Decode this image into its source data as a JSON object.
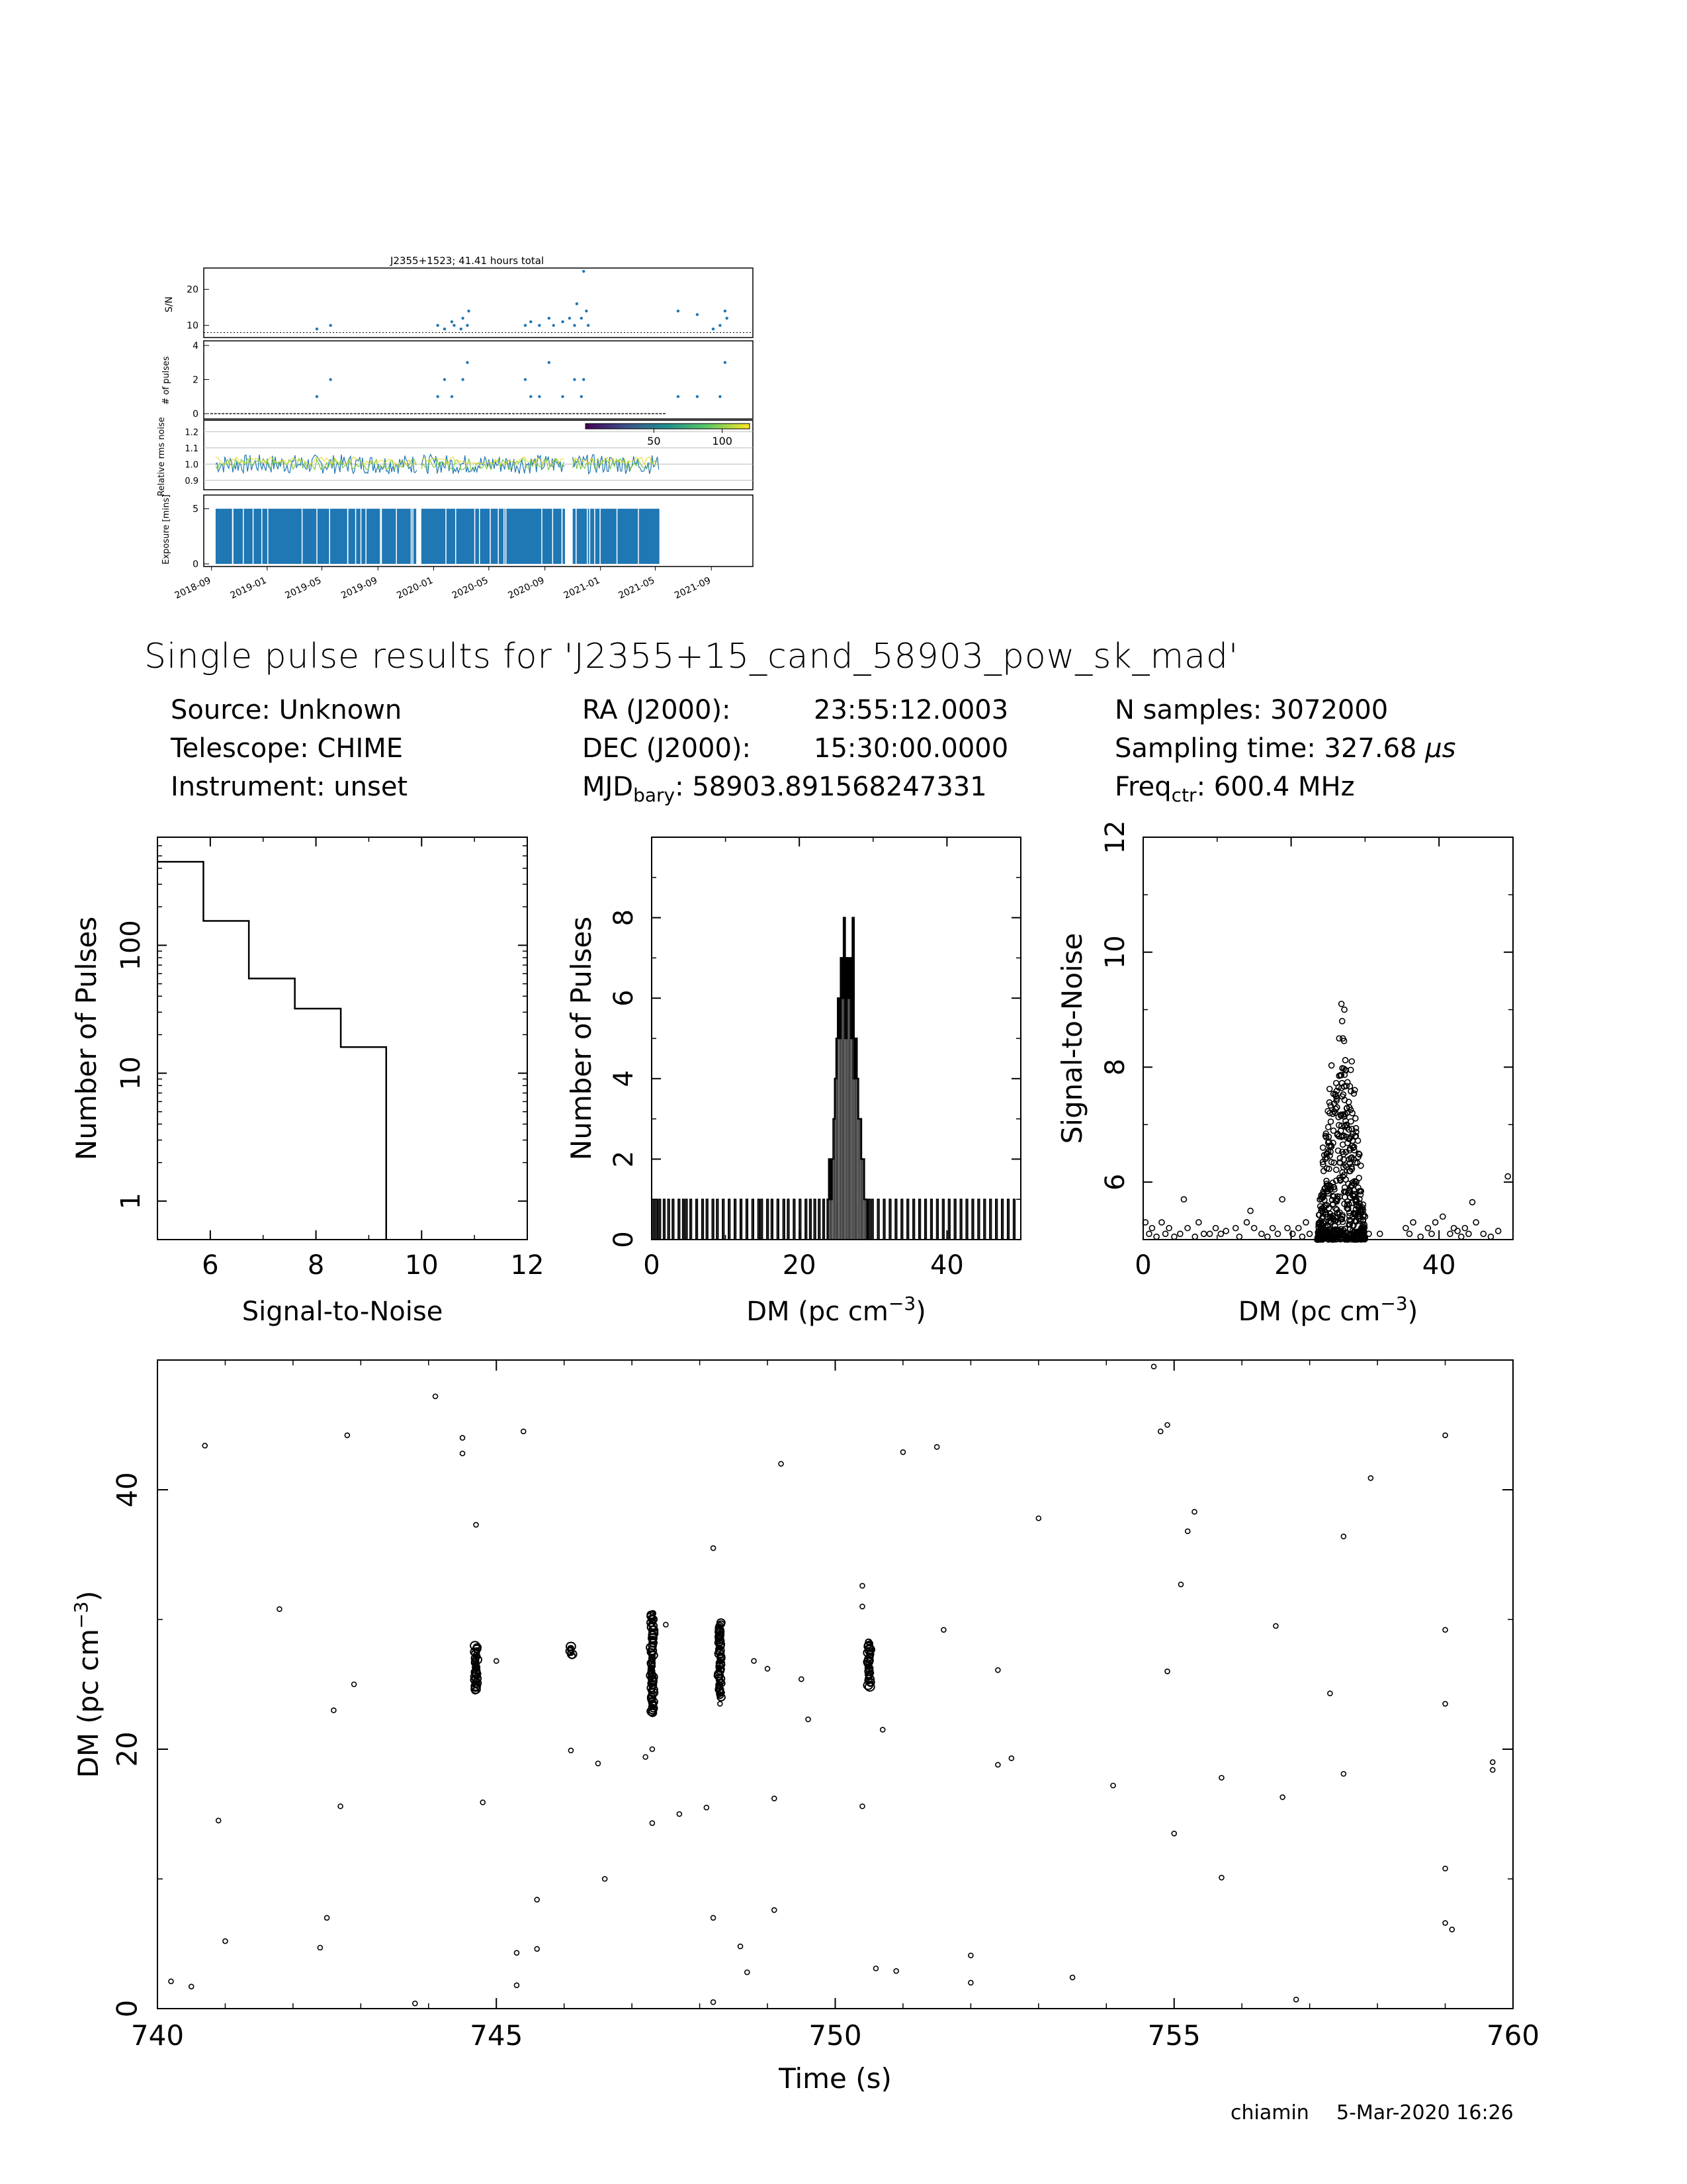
{
  "header": {
    "title": "Single pulse results for 'J2355+15_cand_58903_pow_sk_mad'",
    "source": "Source: Unknown",
    "telescope": "Telescope: CHIME",
    "instrument": "Instrument: unset",
    "ra_label": "RA (J2000):",
    "ra_value": "23:55:12.0003",
    "dec_label": "DEC (J2000):",
    "dec_value": "15:30:00.0000",
    "mjd_prefix": "MJD",
    "mjd_sub": "bary",
    "mjd_value": ": 58903.891568247331",
    "nsamples": "N samples: 3072000",
    "sampling_prefix": "Sampling time: 327.68 ",
    "sampling_unit": "μs",
    "freq_prefix": "Freq",
    "freq_sub": "ctr",
    "freq_value": ": 600.4 MHz"
  },
  "footer": {
    "user": "chiamin",
    "timestamp": "5-Mar-2020 16:26"
  },
  "colors": {
    "points": "#1f77b4",
    "bars": "#1f77b4",
    "ink": "#000000"
  },
  "chart_data": [
    {
      "id": "summary_sn",
      "type": "scatter",
      "title": "J2355+1523; 41.41 hours total",
      "ylabel": "S/N",
      "ylim": [
        7,
        25
      ],
      "yticks": [
        "10",
        "20"
      ],
      "threshold": 8,
      "x": [
        "2019-04-20",
        "2019-05-20",
        "2020-01-10",
        "2020-01-25",
        "2020-02-10",
        "2020-02-15",
        "2020-03-01",
        "2020-03-05",
        "2020-03-15",
        "2020-03-18",
        "2020-07-20",
        "2020-08-01",
        "2020-08-20",
        "2020-09-10",
        "2020-09-20",
        "2020-10-10",
        "2020-10-25",
        "2020-11-05",
        "2020-11-10",
        "2020-11-20",
        "2020-11-25",
        "2020-12-01",
        "2020-12-05",
        "2021-06-20",
        "2021-08-01",
        "2021-09-05",
        "2021-09-20",
        "2021-10-01",
        "2021-10-05"
      ],
      "y": [
        9,
        10,
        10,
        9,
        11,
        10,
        9,
        12,
        10,
        14,
        10,
        11,
        10,
        12,
        10,
        11,
        12,
        10,
        16,
        12,
        25,
        14,
        10,
        14,
        13,
        9,
        10,
        14,
        12
      ]
    },
    {
      "id": "summary_pulses",
      "type": "scatter",
      "ylabel": "# of pulses",
      "ylim": [
        0,
        4
      ],
      "yticks": [
        "0",
        "2",
        "4"
      ],
      "x": [
        "2019-04-20",
        "2019-05-20",
        "2020-01-10",
        "2020-01-25",
        "2020-02-10",
        "2020-03-05",
        "2020-03-15",
        "2020-07-20",
        "2020-08-01",
        "2020-08-20",
        "2020-09-10",
        "2020-10-10",
        "2020-11-05",
        "2020-11-20",
        "2020-11-25",
        "2021-06-20",
        "2021-08-01",
        "2021-09-20",
        "2021-10-01"
      ],
      "y": [
        1,
        2,
        1,
        2,
        1,
        2,
        3,
        2,
        1,
        1,
        3,
        1,
        2,
        1,
        2,
        1,
        1,
        1,
        3
      ]
    },
    {
      "id": "summary_rms",
      "type": "line",
      "ylabel": "Relative rms noise",
      "ylim": [
        0.85,
        1.25
      ],
      "yticks": [
        "0.9",
        "1.0",
        "1.1",
        "1.2"
      ],
      "colorbar_ticks": [
        "50",
        "100"
      ],
      "segments": [
        [
          "2018-09-10",
          "2019-11-25"
        ],
        [
          "2019-12-05",
          "2020-10-15"
        ],
        [
          "2020-11-01",
          "2021-05-10"
        ]
      ]
    },
    {
      "id": "summary_exposure",
      "type": "bar",
      "ylabel": "Exposure [mins]",
      "ylim": [
        0,
        6
      ],
      "yticks": [
        "0",
        "5"
      ],
      "typical_value": 5,
      "segments": [
        [
          "2018-09-10",
          "2019-11-25"
        ],
        [
          "2019-12-05",
          "2020-10-15"
        ],
        [
          "2020-11-01",
          "2021-05-10"
        ]
      ],
      "xticks": [
        "2018-09",
        "2019-01",
        "2019-05",
        "2019-09",
        "2020-01",
        "2020-05",
        "2020-09",
        "2021-01",
        "2021-05",
        "2021-09"
      ]
    },
    {
      "id": "sn_histogram",
      "type": "bar",
      "xlabel": "Signal-to-Noise",
      "ylabel": "Number of Pulses",
      "xlim": [
        5,
        12
      ],
      "ylim_log": [
        0.5,
        700
      ],
      "xticks": [
        "6",
        "8",
        "10",
        "12"
      ],
      "yticks": [
        "1",
        "10",
        "100"
      ],
      "edges": [
        5,
        5.87,
        6.73,
        7.6,
        8.47,
        9.33
      ],
      "values": [
        450,
        155,
        55,
        32,
        16
      ]
    },
    {
      "id": "dm_histogram",
      "type": "bar",
      "xlabel": "DM (pc cm",
      "xlabel_sup": "−3",
      "xlabel_end": ")",
      "ylabel": "Number of Pulses",
      "xlim": [
        0,
        50
      ],
      "ylim": [
        0,
        10
      ],
      "xticks": [
        "0",
        "20",
        "40"
      ],
      "yticks": [
        "0",
        "2",
        "4",
        "6",
        "8"
      ],
      "bin_width": 0.2,
      "peak_bins": [
        [
          23.8,
          1
        ],
        [
          24.0,
          2
        ],
        [
          24.2,
          1
        ],
        [
          24.4,
          2
        ],
        [
          24.6,
          3
        ],
        [
          24.8,
          4
        ],
        [
          25.0,
          5
        ],
        [
          25.2,
          6
        ],
        [
          25.4,
          5
        ],
        [
          25.6,
          7
        ],
        [
          25.8,
          6
        ],
        [
          26.0,
          8
        ],
        [
          26.2,
          5
        ],
        [
          26.4,
          7
        ],
        [
          26.6,
          6
        ],
        [
          26.8,
          7
        ],
        [
          27.0,
          5
        ],
        [
          27.2,
          8
        ],
        [
          27.4,
          4
        ],
        [
          27.6,
          5
        ],
        [
          27.8,
          4
        ],
        [
          28.0,
          3
        ],
        [
          28.2,
          3
        ],
        [
          28.4,
          2
        ],
        [
          28.6,
          2
        ],
        [
          28.8,
          1
        ],
        [
          29.0,
          1
        ]
      ],
      "single_bins": [
        0.2,
        0.6,
        1.0,
        1.6,
        2.2,
        2.8,
        3.6,
        4.2,
        4.6,
        5.2,
        6.0,
        6.8,
        7.4,
        8.2,
        8.8,
        9.6,
        10.4,
        11.2,
        12.0,
        12.8,
        13.6,
        14.4,
        14.8,
        15.6,
        16.2,
        17.0,
        17.8,
        18.4,
        19.2,
        20.0,
        20.8,
        21.4,
        22.0,
        22.6,
        23.2,
        29.4,
        29.8,
        30.6,
        31.4,
        32.2,
        33.0,
        33.8,
        34.6,
        35.4,
        36.2,
        37.0,
        37.8,
        38.6,
        39.4,
        40.2,
        41.0,
        41.8,
        42.6,
        43.4,
        44.2,
        45.0,
        45.8,
        46.6,
        47.4,
        48.2,
        49.0
      ]
    },
    {
      "id": "sn_vs_dm",
      "type": "scatter",
      "xlabel": "DM (pc cm",
      "xlabel_sup": "−3",
      "xlabel_end": ")",
      "ylabel": "Signal-to-Noise",
      "xlim": [
        0,
        50
      ],
      "ylim": [
        5,
        12
      ],
      "xticks": [
        "0",
        "20",
        "40"
      ],
      "yticks": [
        "6",
        "8",
        "10",
        "12"
      ],
      "points": [
        [
          0.3,
          5.3
        ],
        [
          0.8,
          5.1
        ],
        [
          1.2,
          5.2
        ],
        [
          1.8,
          5.05
        ],
        [
          2.5,
          5.3
        ],
        [
          3.0,
          5.1
        ],
        [
          3.5,
          5.2
        ],
        [
          4.2,
          5.05
        ],
        [
          5.0,
          5.1
        ],
        [
          5.5,
          5.7
        ],
        [
          6.0,
          5.2
        ],
        [
          7.0,
          5.05
        ],
        [
          7.5,
          5.3
        ],
        [
          8.2,
          5.1
        ],
        [
          9.0,
          5.1
        ],
        [
          9.8,
          5.2
        ],
        [
          10.5,
          5.1
        ],
        [
          11.2,
          5.15
        ],
        [
          12.5,
          5.2
        ],
        [
          13.0,
          5.05
        ],
        [
          14.0,
          5.3
        ],
        [
          14.5,
          5.5
        ],
        [
          15.0,
          5.2
        ],
        [
          16.0,
          5.1
        ],
        [
          16.8,
          5.05
        ],
        [
          17.5,
          5.2
        ],
        [
          18.2,
          5.1
        ],
        [
          18.8,
          5.7
        ],
        [
          19.5,
          5.2
        ],
        [
          20.2,
          5.1
        ],
        [
          21.0,
          5.2
        ],
        [
          21.5,
          5.05
        ],
        [
          22.0,
          5.3
        ],
        [
          22.5,
          5.1
        ],
        [
          29.5,
          5.2
        ],
        [
          30.0,
          5.4
        ],
        [
          30.5,
          5.1
        ],
        [
          32.0,
          5.1
        ],
        [
          35.5,
          5.2
        ],
        [
          36.0,
          5.1
        ],
        [
          36.5,
          5.3
        ],
        [
          37.5,
          5.05
        ],
        [
          38.5,
          5.2
        ],
        [
          39.0,
          5.1
        ],
        [
          39.5,
          5.3
        ],
        [
          40.5,
          5.4
        ],
        [
          41.5,
          5.1
        ],
        [
          42.0,
          5.2
        ],
        [
          42.5,
          5.15
        ],
        [
          43.0,
          5.05
        ],
        [
          43.5,
          5.2
        ],
        [
          44.0,
          5.1
        ],
        [
          44.5,
          5.65
        ],
        [
          45.0,
          5.3
        ],
        [
          46.0,
          5.1
        ],
        [
          47.0,
          5.05
        ],
        [
          48.0,
          5.15
        ],
        [
          49.3,
          6.1
        ]
      ],
      "cluster": {
        "dm_range": [
          23.5,
          30.0
        ],
        "peak_dm": 26.8,
        "max_sn": 9.1,
        "highlights": [
          [
            26.5,
            8.5
          ],
          [
            27.0,
            8.5
          ],
          [
            26.8,
            9.1
          ],
          [
            27.2,
            9.0
          ],
          [
            26.9,
            8.8
          ],
          [
            28.2,
            8.1
          ],
          [
            28.6,
            7.6
          ],
          [
            26.2,
            7.3
          ],
          [
            27.5,
            7.0
          ],
          [
            24.3,
            6.6
          ]
        ]
      }
    },
    {
      "id": "dm_vs_time",
      "type": "scatter",
      "xlabel": "Time (s)",
      "ylabel": "DM (pc cm",
      "ylabel_sup": "−3",
      "ylabel_end": ")",
      "xlim": [
        740,
        760
      ],
      "ylim": [
        0,
        50
      ],
      "xticks": [
        "740",
        "745",
        "750",
        "755",
        "760"
      ],
      "yticks": [
        "0",
        "20",
        "40"
      ],
      "points": [
        [
          740.2,
          2.1
        ],
        [
          740.5,
          1.7
        ],
        [
          740.7,
          43.4
        ],
        [
          740.9,
          14.5
        ],
        [
          741.0,
          5.2
        ],
        [
          741.8,
          30.8
        ],
        [
          742.4,
          4.7
        ],
        [
          742.5,
          7.0
        ],
        [
          742.6,
          23.0
        ],
        [
          742.7,
          15.6
        ],
        [
          742.8,
          44.2
        ],
        [
          742.9,
          25.0
        ],
        [
          743.8,
          0.4
        ],
        [
          744.1,
          47.2
        ],
        [
          744.5,
          44.0
        ],
        [
          744.5,
          42.8
        ],
        [
          744.7,
          37.3
        ],
        [
          744.8,
          15.9
        ],
        [
          745.0,
          26.8
        ],
        [
          745.3,
          4.3
        ],
        [
          745.3,
          1.8
        ],
        [
          745.4,
          44.5
        ],
        [
          745.6,
          8.4
        ],
        [
          745.6,
          4.6
        ],
        [
          746.1,
          19.9
        ],
        [
          746.5,
          18.9
        ],
        [
          746.6,
          10.0
        ],
        [
          747.2,
          19.4
        ],
        [
          747.3,
          20.0
        ],
        [
          747.5,
          29.6
        ],
        [
          747.7,
          15.0
        ],
        [
          748.1,
          15.5
        ],
        [
          748.2,
          35.5
        ],
        [
          748.2,
          7.0
        ],
        [
          748.3,
          23.5
        ],
        [
          748.6,
          4.8
        ],
        [
          748.7,
          2.8
        ],
        [
          748.8,
          26.8
        ],
        [
          749.0,
          26.2
        ],
        [
          749.1,
          16.2
        ],
        [
          749.1,
          7.6
        ],
        [
          749.2,
          42.0
        ],
        [
          749.5,
          25.4
        ],
        [
          749.6,
          22.3
        ],
        [
          750.4,
          32.6
        ],
        [
          750.4,
          31.0
        ],
        [
          750.4,
          15.6
        ],
        [
          750.6,
          3.1
        ],
        [
          750.7,
          21.5
        ],
        [
          750.9,
          2.9
        ],
        [
          751.0,
          42.9
        ],
        [
          751.5,
          43.3
        ],
        [
          751.6,
          29.2
        ],
        [
          752.0,
          4.1
        ],
        [
          752.0,
          2.0
        ],
        [
          752.4,
          26.1
        ],
        [
          752.4,
          18.8
        ],
        [
          752.6,
          19.3
        ],
        [
          753.0,
          37.8
        ],
        [
          753.5,
          2.4
        ],
        [
          754.1,
          17.2
        ],
        [
          754.7,
          49.5
        ],
        [
          754.8,
          44.5
        ],
        [
          754.9,
          45.0
        ],
        [
          754.9,
          26.0
        ],
        [
          755.0,
          13.5
        ],
        [
          755.1,
          32.7
        ],
        [
          755.2,
          36.8
        ],
        [
          755.3,
          38.3
        ],
        [
          755.7,
          17.8
        ],
        [
          755.7,
          10.1
        ],
        [
          756.5,
          29.5
        ],
        [
          756.8,
          0.7
        ],
        [
          756.6,
          16.3
        ],
        [
          757.3,
          24.3
        ],
        [
          757.5,
          36.4
        ],
        [
          757.5,
          18.1
        ],
        [
          757.9,
          40.9
        ],
        [
          759.0,
          44.2
        ],
        [
          759.0,
          29.2
        ],
        [
          759.0,
          23.5
        ],
        [
          759.0,
          10.8
        ],
        [
          759.0,
          6.6
        ],
        [
          759.1,
          6.1
        ],
        [
          759.7,
          19.0
        ],
        [
          759.7,
          18.4
        ],
        [
          748.2,
          0.5
        ],
        [
          747.3,
          14.3
        ]
      ],
      "clusters": [
        {
          "t": 744.7,
          "dm_range": [
            24.5,
            28.0
          ]
        },
        {
          "t": 746.1,
          "dm_range": [
            27.2,
            28.0
          ]
        },
        {
          "t": 747.3,
          "dm_range": [
            22.8,
            30.6
          ]
        },
        {
          "t": 748.3,
          "dm_range": [
            24.0,
            29.8
          ]
        },
        {
          "t": 750.5,
          "dm_range": [
            24.8,
            28.4
          ]
        }
      ]
    }
  ]
}
